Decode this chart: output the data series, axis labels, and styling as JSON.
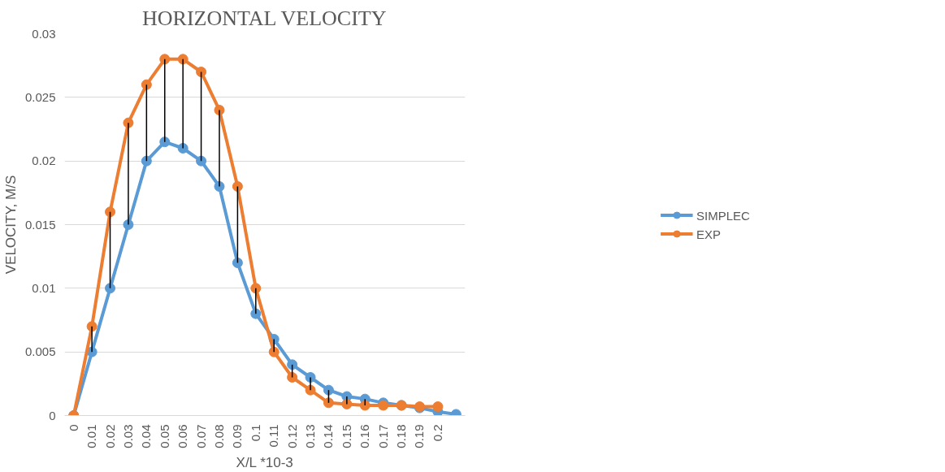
{
  "chart_data": {
    "type": "line",
    "title": "HORIZONTAL VELOCITY",
    "xlabel": "X/L *10-3",
    "ylabel": "VELOCITY, M/S",
    "categories": [
      "0",
      "0.01",
      "0.02",
      "0.03",
      "0.04",
      "0.05",
      "0.06",
      "0.07",
      "0.08",
      "0.09",
      "0.1",
      "0.11",
      "0.12",
      "0.13",
      "0.14",
      "0.15",
      "0.16",
      "0.17",
      "0.18",
      "0.19",
      "0.2",
      null
    ],
    "series": [
      {
        "name": "SIMPLEC",
        "color": "#5b9bd5",
        "values": [
          0,
          0.005,
          0.01,
          0.015,
          0.02,
          0.0215,
          0.021,
          0.02,
          0.018,
          0.012,
          0.008,
          0.006,
          0.004,
          0.003,
          0.002,
          0.0015,
          0.0013,
          0.001,
          0.0008,
          0.0006,
          0.0003,
          0.0001
        ]
      },
      {
        "name": "EXP",
        "color": "#ed7d31",
        "values": [
          0,
          0.007,
          0.016,
          0.023,
          0.026,
          0.028,
          0.028,
          0.027,
          0.024,
          0.018,
          0.01,
          0.005,
          0.003,
          0.002,
          0.001,
          0.0009,
          0.0008,
          0.0008,
          0.0008,
          0.0007,
          0.0007,
          null
        ],
        "errors": [
          null,
          [
            0.005,
            0.007
          ],
          [
            0.01,
            0.016
          ],
          [
            0.015,
            0.023
          ],
          [
            0.02,
            0.026
          ],
          [
            0.0215,
            0.028
          ],
          [
            0.021,
            0.028
          ],
          [
            0.02,
            0.027
          ],
          [
            0.018,
            0.024
          ],
          [
            0.012,
            0.018
          ],
          [
            0.008,
            0.01
          ],
          [
            0.005,
            0.006
          ],
          [
            0.003,
            0.004
          ],
          [
            0.002,
            0.003
          ],
          [
            0.001,
            0.002
          ],
          [
            0.0009,
            0.0015
          ],
          [
            0.0008,
            0.0013
          ],
          null,
          null,
          null,
          null,
          null
        ]
      }
    ],
    "ylim": [
      0,
      0.03
    ],
    "yticks": [
      0,
      0.005,
      0.01,
      0.015,
      0.02,
      0.025,
      0.03
    ],
    "grid": "y",
    "legend": "right",
    "marker": "circle",
    "line_style": "solid"
  }
}
